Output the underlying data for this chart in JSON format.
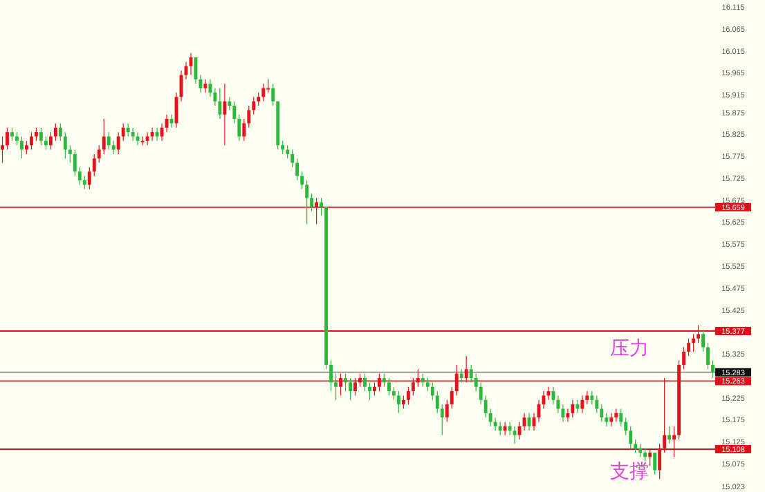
{
  "chart_data": {
    "type": "candlestick",
    "categories": [
      null,
      null,
      null,
      null,
      null,
      null,
      null,
      null,
      null,
      null,
      null,
      null,
      null,
      null,
      null,
      null,
      null,
      null,
      null,
      null,
      null,
      null,
      null,
      null,
      null,
      null,
      null,
      null,
      null,
      null,
      null,
      null,
      null,
      null,
      null,
      null,
      null,
      null,
      null,
      null,
      null,
      null,
      null,
      null,
      null,
      null,
      null,
      null,
      null,
      null,
      null,
      null,
      null,
      null,
      null,
      null,
      null,
      null,
      null,
      null,
      null,
      null,
      null,
      null,
      null,
      null,
      null,
      null,
      null,
      null,
      null,
      null,
      null,
      null,
      null,
      null,
      null,
      null,
      null,
      null,
      null,
      null,
      null,
      null,
      null,
      null,
      null,
      null,
      null,
      null,
      null,
      null,
      null,
      null,
      null,
      null,
      null,
      null,
      null,
      null,
      null,
      null,
      null,
      null,
      null,
      null,
      null,
      null,
      null,
      null,
      null,
      null,
      null,
      null,
      null,
      null,
      null,
      null,
      null,
      null,
      null,
      null,
      null,
      null,
      null,
      null,
      null,
      null,
      null,
      null,
      null,
      null,
      null,
      null,
      null,
      null,
      null,
      null,
      null,
      null,
      null,
      null,
      null,
      null,
      null,
      null,
      null,
      null
    ],
    "ohlc": [
      [
        15.79,
        15.82,
        15.76,
        15.8
      ],
      [
        15.8,
        15.84,
        15.79,
        15.83
      ],
      [
        15.83,
        15.84,
        15.81,
        15.82
      ],
      [
        15.82,
        15.83,
        15.8,
        15.81
      ],
      [
        15.81,
        15.82,
        15.77,
        15.79
      ],
      [
        15.79,
        15.81,
        15.78,
        15.8
      ],
      [
        15.8,
        15.83,
        15.79,
        15.82
      ],
      [
        15.82,
        15.84,
        15.81,
        15.83
      ],
      [
        15.83,
        15.84,
        15.8,
        15.81
      ],
      [
        15.81,
        15.82,
        15.79,
        15.8
      ],
      [
        15.8,
        15.83,
        15.79,
        15.82
      ],
      [
        15.82,
        15.85,
        15.81,
        15.84
      ],
      [
        15.84,
        15.85,
        15.81,
        15.82
      ],
      [
        15.82,
        15.83,
        15.77,
        15.79
      ],
      [
        15.79,
        15.8,
        15.76,
        15.78
      ],
      [
        15.78,
        15.79,
        15.73,
        15.74
      ],
      [
        15.74,
        15.75,
        15.71,
        15.72
      ],
      [
        15.72,
        15.73,
        15.7,
        15.71
      ],
      [
        15.71,
        15.75,
        15.7,
        15.74
      ],
      [
        15.74,
        15.78,
        15.73,
        15.77
      ],
      [
        15.77,
        15.8,
        15.76,
        15.79
      ],
      [
        15.79,
        15.86,
        15.78,
        15.82
      ],
      [
        15.82,
        15.83,
        15.79,
        15.8
      ],
      [
        15.8,
        15.81,
        15.78,
        15.79
      ],
      [
        15.79,
        15.83,
        15.78,
        15.82
      ],
      [
        15.82,
        15.85,
        15.81,
        15.84
      ],
      [
        15.84,
        15.85,
        15.82,
        15.83
      ],
      [
        15.83,
        15.84,
        15.81,
        15.82
      ],
      [
        15.82,
        15.83,
        15.8,
        15.81
      ],
      [
        15.81,
        15.82,
        15.8,
        15.81
      ],
      [
        15.81,
        15.83,
        15.8,
        15.82
      ],
      [
        15.82,
        15.84,
        15.81,
        15.83
      ],
      [
        15.83,
        15.84,
        15.81,
        15.82
      ],
      [
        15.82,
        15.85,
        15.81,
        15.84
      ],
      [
        15.84,
        15.87,
        15.83,
        15.86
      ],
      [
        15.86,
        15.87,
        15.84,
        15.85
      ],
      [
        15.85,
        15.92,
        15.84,
        15.91
      ],
      [
        15.91,
        15.97,
        15.9,
        15.96
      ],
      [
        15.96,
        15.99,
        15.95,
        15.98
      ],
      [
        15.98,
        16.01,
        15.96,
        16.0
      ],
      [
        16.0,
        16.0,
        15.94,
        15.95
      ],
      [
        15.95,
        15.96,
        15.92,
        15.93
      ],
      [
        15.93,
        15.95,
        15.92,
        15.94
      ],
      [
        15.94,
        15.95,
        15.91,
        15.92
      ],
      [
        15.92,
        15.93,
        15.89,
        15.9
      ],
      [
        15.9,
        15.93,
        15.86,
        15.87
      ],
      [
        15.87,
        15.94,
        15.8,
        15.9
      ],
      [
        15.9,
        15.91,
        15.88,
        15.89
      ],
      [
        15.89,
        15.9,
        15.85,
        15.86
      ],
      [
        15.86,
        15.87,
        15.81,
        15.82
      ],
      [
        15.82,
        15.86,
        15.81,
        15.85
      ],
      [
        15.85,
        15.89,
        15.84,
        15.88
      ],
      [
        15.88,
        15.91,
        15.87,
        15.9
      ],
      [
        15.9,
        15.92,
        15.89,
        15.91
      ],
      [
        15.91,
        15.94,
        15.9,
        15.93
      ],
      [
        15.93,
        15.95,
        15.92,
        15.93
      ],
      [
        15.93,
        15.94,
        15.89,
        15.9
      ],
      [
        15.9,
        15.9,
        15.79,
        15.8
      ],
      [
        15.8,
        15.81,
        15.78,
        15.79
      ],
      [
        15.79,
        15.8,
        15.77,
        15.78
      ],
      [
        15.78,
        15.79,
        15.75,
        15.76
      ],
      [
        15.76,
        15.77,
        15.72,
        15.73
      ],
      [
        15.73,
        15.74,
        15.7,
        15.71
      ],
      [
        15.71,
        15.72,
        15.62,
        15.68
      ],
      [
        15.68,
        15.69,
        15.65,
        15.66
      ],
      [
        15.66,
        15.68,
        15.62,
        15.67
      ],
      [
        15.67,
        15.68,
        15.64,
        15.66
      ],
      [
        15.66,
        15.66,
        15.29,
        15.3
      ],
      [
        15.3,
        15.31,
        15.24,
        15.26
      ],
      [
        15.26,
        15.28,
        15.22,
        15.25
      ],
      [
        15.25,
        15.28,
        15.23,
        15.27
      ],
      [
        15.27,
        15.28,
        15.24,
        15.26
      ],
      [
        15.26,
        15.27,
        15.22,
        15.24
      ],
      [
        15.24,
        15.27,
        15.23,
        15.26
      ],
      [
        15.26,
        15.28,
        15.25,
        15.27
      ],
      [
        15.27,
        15.28,
        15.24,
        15.25
      ],
      [
        15.25,
        15.26,
        15.22,
        15.24
      ],
      [
        15.24,
        15.26,
        15.23,
        15.25
      ],
      [
        15.25,
        15.28,
        15.24,
        15.27
      ],
      [
        15.27,
        15.28,
        15.25,
        15.26
      ],
      [
        15.26,
        15.27,
        15.23,
        15.24
      ],
      [
        15.24,
        15.25,
        15.22,
        15.23
      ],
      [
        15.23,
        15.24,
        15.19,
        15.21
      ],
      [
        15.21,
        15.23,
        15.2,
        15.22
      ],
      [
        15.22,
        15.25,
        15.21,
        15.24
      ],
      [
        15.24,
        15.27,
        15.23,
        15.26
      ],
      [
        15.26,
        15.29,
        15.25,
        15.27
      ],
      [
        15.27,
        15.28,
        15.25,
        15.26
      ],
      [
        15.26,
        15.27,
        15.24,
        15.25
      ],
      [
        15.25,
        15.26,
        15.22,
        15.23
      ],
      [
        15.23,
        15.24,
        15.19,
        15.2
      ],
      [
        15.2,
        15.21,
        15.14,
        15.18
      ],
      [
        15.18,
        15.22,
        15.17,
        15.21
      ],
      [
        15.21,
        15.25,
        15.2,
        15.24
      ],
      [
        15.24,
        15.3,
        15.23,
        15.28
      ],
      [
        15.28,
        15.29,
        15.26,
        15.27
      ],
      [
        15.27,
        15.32,
        15.26,
        15.29
      ],
      [
        15.29,
        15.3,
        15.26,
        15.27
      ],
      [
        15.27,
        15.28,
        15.24,
        15.25
      ],
      [
        15.25,
        15.26,
        15.21,
        15.22
      ],
      [
        15.22,
        15.23,
        15.18,
        15.19
      ],
      [
        15.19,
        15.2,
        15.16,
        15.17
      ],
      [
        15.17,
        15.18,
        15.15,
        15.16
      ],
      [
        15.16,
        15.17,
        15.14,
        15.15
      ],
      [
        15.15,
        15.17,
        15.14,
        15.16
      ],
      [
        15.16,
        15.17,
        15.14,
        15.15
      ],
      [
        15.15,
        15.16,
        15.12,
        15.14
      ],
      [
        15.14,
        15.17,
        15.13,
        15.16
      ],
      [
        15.16,
        15.19,
        15.15,
        15.18
      ],
      [
        15.18,
        15.19,
        15.15,
        15.16
      ],
      [
        15.16,
        15.19,
        15.15,
        15.18
      ],
      [
        15.18,
        15.22,
        15.17,
        15.21
      ],
      [
        15.21,
        15.24,
        15.2,
        15.23
      ],
      [
        15.23,
        15.25,
        15.22,
        15.24
      ],
      [
        15.24,
        15.25,
        15.21,
        15.22
      ],
      [
        15.22,
        15.23,
        15.19,
        15.2
      ],
      [
        15.2,
        15.21,
        15.17,
        15.18
      ],
      [
        15.18,
        15.2,
        15.17,
        15.19
      ],
      [
        15.19,
        15.22,
        15.18,
        15.21
      ],
      [
        15.21,
        15.22,
        15.19,
        15.2
      ],
      [
        15.2,
        15.23,
        15.19,
        15.22
      ],
      [
        15.22,
        15.24,
        15.21,
        15.23
      ],
      [
        15.23,
        15.24,
        15.21,
        15.22
      ],
      [
        15.22,
        15.23,
        15.19,
        15.2
      ],
      [
        15.2,
        15.21,
        15.17,
        15.18
      ],
      [
        15.18,
        15.19,
        15.16,
        15.17
      ],
      [
        15.17,
        15.19,
        15.16,
        15.18
      ],
      [
        15.18,
        15.2,
        15.17,
        15.19
      ],
      [
        15.19,
        15.2,
        15.16,
        15.17
      ],
      [
        15.17,
        15.18,
        15.14,
        15.15
      ],
      [
        15.15,
        15.16,
        15.11,
        15.12
      ],
      [
        15.12,
        15.13,
        15.1,
        15.11
      ],
      [
        15.11,
        15.12,
        15.09,
        15.1
      ],
      [
        15.1,
        15.11,
        15.08,
        15.09
      ],
      [
        15.09,
        15.11,
        15.07,
        15.1
      ],
      [
        15.1,
        15.1,
        15.05,
        15.06
      ],
      [
        15.06,
        15.12,
        15.04,
        15.11
      ],
      [
        15.11,
        15.27,
        15.1,
        15.14
      ],
      [
        15.14,
        15.16,
        15.12,
        15.13
      ],
      [
        15.13,
        15.16,
        15.09,
        15.14
      ],
      [
        15.14,
        15.31,
        15.13,
        15.3
      ],
      [
        15.3,
        15.34,
        15.29,
        15.33
      ],
      [
        15.33,
        15.36,
        15.32,
        15.35
      ],
      [
        15.35,
        15.37,
        15.33,
        15.36
      ],
      [
        15.36,
        15.39,
        15.35,
        15.37
      ],
      [
        15.37,
        15.38,
        15.33,
        15.34
      ],
      [
        15.34,
        15.35,
        15.29,
        15.3
      ],
      [
        15.3,
        15.31,
        15.27,
        15.283
      ]
    ],
    "ylim": [
      15.023,
      16.115
    ],
    "yticks": [
      {
        "value": 16.115,
        "label": "16.115"
      },
      {
        "value": 16.065,
        "label": "16.065"
      },
      {
        "value": 16.015,
        "label": "16.015"
      },
      {
        "value": 15.965,
        "label": "15.965"
      },
      {
        "value": 15.915,
        "label": "15.915"
      },
      {
        "value": 15.875,
        "label": "15.875"
      },
      {
        "value": 15.825,
        "label": "15.825"
      },
      {
        "value": 15.775,
        "label": "15.775"
      },
      {
        "value": 15.725,
        "label": "15.725"
      },
      {
        "value": 15.675,
        "label": "15.675"
      },
      {
        "value": 15.625,
        "label": "15.625"
      },
      {
        "value": 15.575,
        "label": "15.575"
      },
      {
        "value": 15.525,
        "label": "15.525"
      },
      {
        "value": 15.475,
        "label": "15.475"
      },
      {
        "value": 15.425,
        "label": "15.425"
      },
      {
        "value": 15.325,
        "label": "15.325"
      },
      {
        "value": 15.225,
        "label": "15.225"
      },
      {
        "value": 15.175,
        "label": "15.175"
      },
      {
        "value": 15.125,
        "label": "15.125"
      },
      {
        "value": 15.075,
        "label": "15.075"
      },
      {
        "value": 15.023,
        "label": "15.023"
      }
    ],
    "tick_labels": "y",
    "ref_lines": [
      {
        "axis": "y",
        "value": 15.659,
        "label": "15.659",
        "color": "#e0101a"
      },
      {
        "axis": "y",
        "value": 15.377,
        "label": "15.377",
        "color": "#e0101a"
      },
      {
        "axis": "y",
        "value": 15.283,
        "label": "15.283",
        "color": "#9a9a9a"
      },
      {
        "axis": "y",
        "value": 15.263,
        "label": "15.263",
        "color": "#e0101a"
      },
      {
        "axis": "y",
        "value": 15.108,
        "label": "15.108",
        "color": "#e0101a"
      }
    ],
    "annotations": [
      "压力",
      "支撑"
    ]
  }
}
